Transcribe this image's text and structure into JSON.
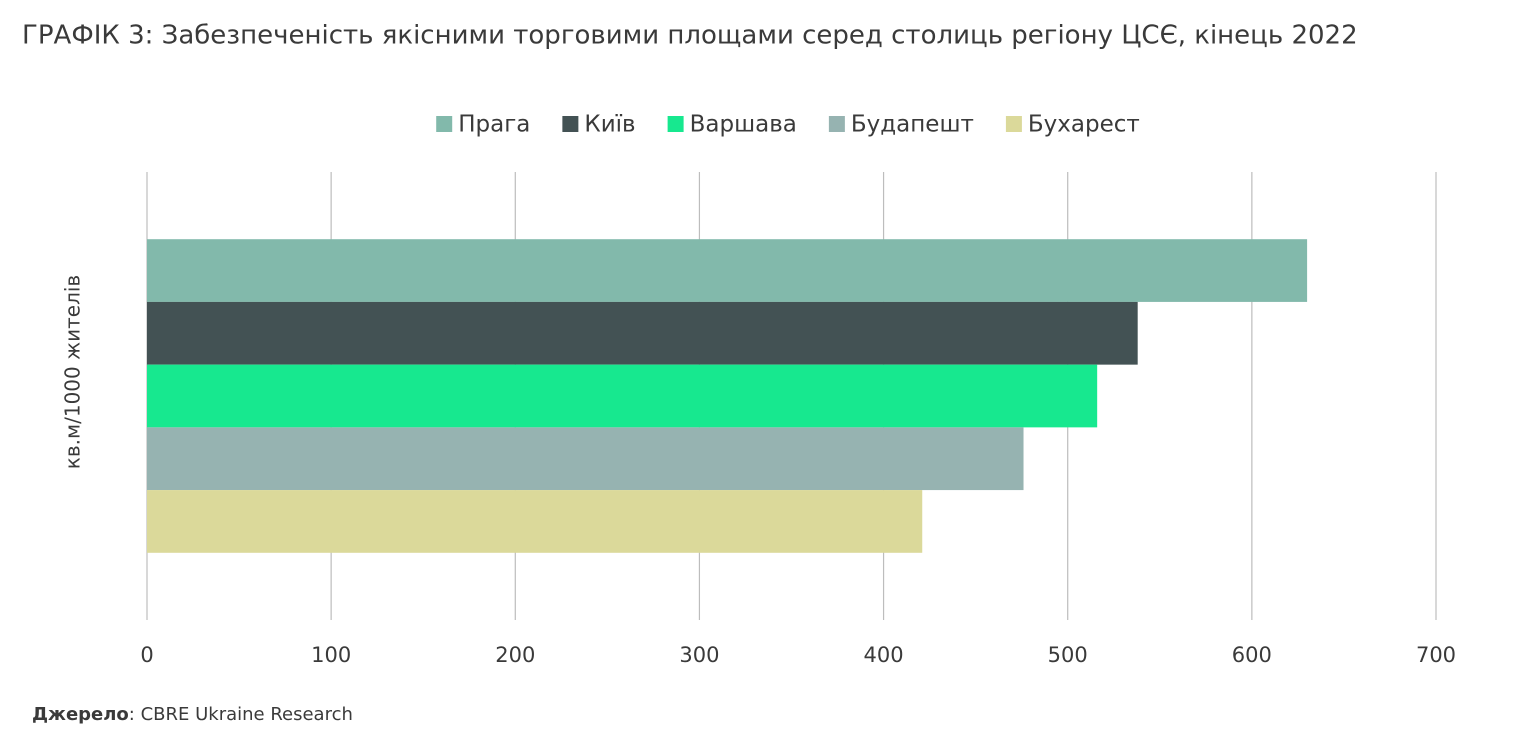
{
  "chart_data": {
    "type": "hbar",
    "title": "ГРАФІК 3: Забезпеченість якісними торговими площами серед столиць регіону ЦСЄ, кінець 2022",
    "y_label": "кв.м/1000 жителів",
    "source_label": "Джерело",
    "source_text": ": CBRE Ukraine Research",
    "categories": [
      null
    ],
    "series": [
      {
        "name": "Прага",
        "color": "#82b9ab",
        "values": [
          630
        ]
      },
      {
        "name": "Київ",
        "color": "#435254",
        "values": [
          538
        ]
      },
      {
        "name": "Варшава",
        "color": "#17e88f",
        "values": [
          516
        ]
      },
      {
        "name": "Будапешт",
        "color": "#96b3b1",
        "values": [
          476
        ]
      },
      {
        "name": "Бухарест",
        "color": "#dbd99a",
        "values": [
          421
        ]
      }
    ],
    "xlim": [
      0,
      700
    ],
    "xticks": [
      0,
      100,
      200,
      300,
      400,
      500,
      600,
      700
    ],
    "grid": true,
    "legend": "top"
  }
}
